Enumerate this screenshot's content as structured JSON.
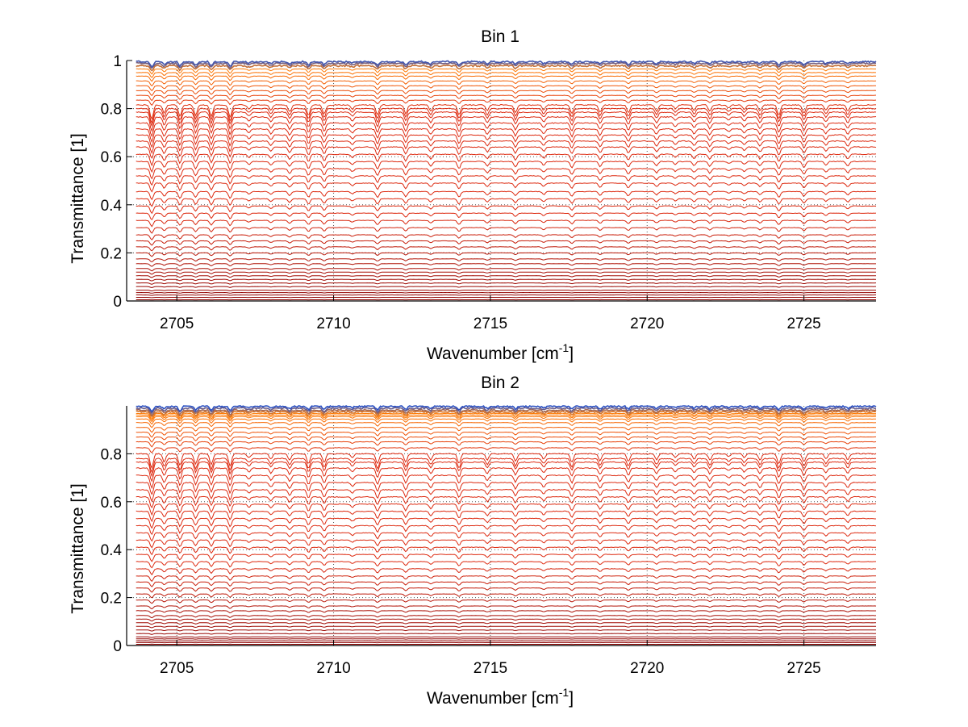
{
  "chart_data": [
    {
      "type": "line",
      "title": "Bin 1",
      "xlabel": "Wavenumber [cm",
      "xlabel_sup": "-1",
      "xlabel_close": "]",
      "ylabel": "Transmittance [1]",
      "xlim": [
        2703.4,
        2727.3
      ],
      "ylim": [
        0,
        1
      ],
      "xticks": [
        2705,
        2710,
        2715,
        2720,
        2725
      ],
      "xtick_labels": [
        "2705",
        "2710",
        "2715",
        "2720",
        "2725"
      ],
      "yticks": [
        0,
        0.2,
        0.4,
        0.6,
        0.8,
        1
      ],
      "ytick_labels": [
        "0",
        "0.2",
        "0.4",
        "0.6",
        "0.8",
        "1"
      ],
      "grid": true,
      "series_count": 48,
      "baselines": [
        0.005,
        0.015,
        0.025,
        0.035,
        0.045,
        0.06,
        0.075,
        0.09,
        0.105,
        0.12,
        0.135,
        0.155,
        0.175,
        0.2,
        0.225,
        0.25,
        0.275,
        0.305,
        0.335,
        0.365,
        0.395,
        0.425,
        0.455,
        0.49,
        0.52,
        0.55,
        0.58,
        0.61,
        0.64,
        0.665,
        0.69,
        0.715,
        0.74,
        0.765,
        0.785,
        0.8,
        0.815,
        0.835,
        0.855,
        0.875,
        0.895,
        0.915,
        0.935,
        0.95,
        0.965,
        0.978,
        0.988,
        0.995
      ],
      "colors": {
        "dark": "#8b0000",
        "mid": "#dd2a10",
        "bright": "#ff7a00",
        "top": "#1e4fd0"
      }
    },
    {
      "type": "line",
      "title": "Bin 2",
      "xlabel": "Wavenumber [cm",
      "xlabel_sup": "-1",
      "xlabel_close": "]",
      "ylabel": "Transmittance [1]",
      "xlim": [
        2703.4,
        2727.3
      ],
      "ylim": [
        0,
        1
      ],
      "xticks": [
        2705,
        2710,
        2715,
        2720,
        2725
      ],
      "xtick_labels": [
        "2705",
        "2710",
        "2715",
        "2720",
        "2725"
      ],
      "yticks": [
        0,
        0.2,
        0.4,
        0.6,
        0.8
      ],
      "ytick_labels": [
        "0",
        "0.2",
        "0.4",
        "0.6",
        "0.8"
      ],
      "grid": true,
      "series_count": 50,
      "baselines": [
        0.005,
        0.012,
        0.02,
        0.028,
        0.036,
        0.05,
        0.065,
        0.08,
        0.095,
        0.11,
        0.125,
        0.145,
        0.165,
        0.19,
        0.215,
        0.24,
        0.265,
        0.29,
        0.32,
        0.35,
        0.38,
        0.41,
        0.44,
        0.47,
        0.5,
        0.53,
        0.56,
        0.59,
        0.62,
        0.65,
        0.68,
        0.71,
        0.74,
        0.765,
        0.78,
        0.8,
        0.825,
        0.85,
        0.87,
        0.89,
        0.91,
        0.93,
        0.945,
        0.955,
        0.962,
        0.968,
        0.975,
        0.982,
        0.99,
        0.998
      ],
      "colors": {
        "dark": "#8b0000",
        "mid": "#dd2a10",
        "bright": "#ff7a00",
        "top": "#1e4fd0"
      }
    }
  ]
}
